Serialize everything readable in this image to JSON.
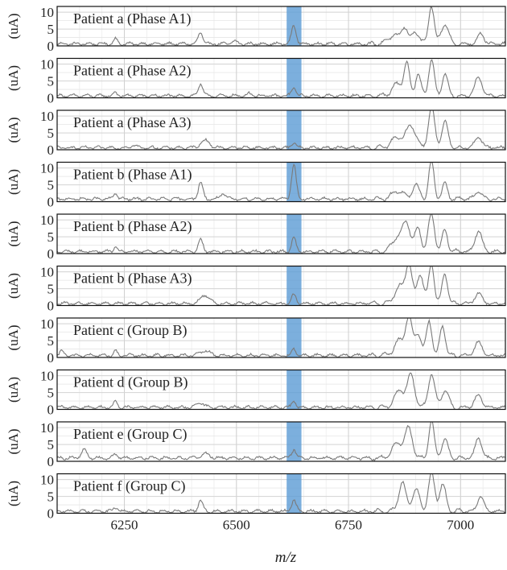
{
  "chart_data": {
    "type": "line",
    "title": "",
    "xlabel": "m/z",
    "ylabel": "(uA)",
    "xlim": [
      6100,
      7100
    ],
    "ylim": [
      0,
      11
    ],
    "x_ticks": [
      6250,
      6500,
      6750,
      7000
    ],
    "y_ticks": [
      0,
      5,
      10
    ],
    "grid": true,
    "highlight_band": {
      "x_range": [
        6612,
        6645
      ],
      "color": "#5b9bd5"
    },
    "line_color": "#7a7a7a",
    "series": [
      {
        "name": "Patient a (Phase A1)",
        "baseline": 0.6,
        "peaks": [
          [
            6230,
            1.6,
            4
          ],
          [
            6420,
            3.4,
            5
          ],
          [
            6495,
            0.8,
            6
          ],
          [
            6628,
            5.6,
            5
          ],
          [
            6850,
            2.5,
            12
          ],
          [
            6875,
            5.0,
            7
          ],
          [
            6900,
            3.6,
            8
          ],
          [
            6935,
            11.5,
            6
          ],
          [
            6965,
            6.0,
            8
          ],
          [
            7045,
            3.2,
            7
          ]
        ]
      },
      {
        "name": "Patient a (Phase A2)",
        "baseline": 0.6,
        "peaks": [
          [
            6230,
            1.0,
            4
          ],
          [
            6420,
            3.6,
            5
          ],
          [
            6530,
            0.7,
            6
          ],
          [
            6628,
            2.5,
            5
          ],
          [
            6860,
            3.5,
            12
          ],
          [
            6880,
            9.0,
            6
          ],
          [
            6905,
            6.5,
            6
          ],
          [
            6935,
            11.0,
            6
          ],
          [
            6965,
            6.8,
            6
          ],
          [
            7040,
            5.5,
            8
          ]
        ]
      },
      {
        "name": "Patient a (Phase A3)",
        "baseline": 0.6,
        "peaks": [
          [
            6270,
            0.8,
            6
          ],
          [
            6430,
            2.2,
            10
          ],
          [
            6628,
            1.6,
            5
          ],
          [
            6860,
            3.0,
            14
          ],
          [
            6890,
            6.5,
            10
          ],
          [
            6935,
            12.0,
            7
          ],
          [
            6965,
            7.5,
            7
          ],
          [
            7040,
            3.2,
            8
          ]
        ]
      },
      {
        "name": "Patient b (Phase A1)",
        "baseline": 0.8,
        "peaks": [
          [
            6230,
            2.0,
            4
          ],
          [
            6420,
            5.0,
            5
          ],
          [
            6470,
            1.6,
            6
          ],
          [
            6628,
            10.5,
            5
          ],
          [
            6860,
            2.5,
            12
          ],
          [
            6900,
            4.0,
            8
          ],
          [
            6935,
            11.0,
            6
          ],
          [
            6965,
            4.5,
            6
          ],
          [
            7040,
            2.2,
            8
          ]
        ]
      },
      {
        "name": "Patient b (Phase A2)",
        "baseline": 0.6,
        "peaks": [
          [
            6230,
            1.4,
            4
          ],
          [
            6420,
            3.5,
            5
          ],
          [
            6628,
            4.0,
            5
          ],
          [
            6860,
            4.5,
            12
          ],
          [
            6880,
            8.0,
            8
          ],
          [
            6905,
            7.0,
            7
          ],
          [
            6935,
            11.0,
            7
          ],
          [
            6965,
            6.5,
            6
          ],
          [
            7040,
            6.0,
            8
          ]
        ]
      },
      {
        "name": "Patient b (Phase A3)",
        "baseline": 0.6,
        "peaks": [
          [
            6430,
            2.5,
            10
          ],
          [
            6628,
            2.6,
            5
          ],
          [
            6865,
            5.0,
            12
          ],
          [
            6885,
            11.0,
            7
          ],
          [
            6910,
            9.0,
            7
          ],
          [
            6935,
            12.0,
            6
          ],
          [
            6965,
            9.0,
            6
          ],
          [
            7040,
            3.0,
            8
          ]
        ]
      },
      {
        "name": "Patient c (Group B)",
        "baseline": 0.6,
        "peaks": [
          [
            6110,
            1.4,
            4
          ],
          [
            6230,
            1.2,
            4
          ],
          [
            6430,
            1.4,
            10
          ],
          [
            6628,
            2.0,
            4
          ],
          [
            6865,
            4.5,
            12
          ],
          [
            6885,
            10.5,
            7
          ],
          [
            6905,
            6.5,
            7
          ],
          [
            6930,
            10.5,
            6
          ],
          [
            6960,
            9.0,
            6
          ],
          [
            7040,
            4.0,
            8
          ]
        ]
      },
      {
        "name": "Patient d (Group B)",
        "baseline": 0.6,
        "peaks": [
          [
            6230,
            1.8,
            4
          ],
          [
            6420,
            1.4,
            8
          ],
          [
            6628,
            2.2,
            4
          ],
          [
            6865,
            5.0,
            12
          ],
          [
            6890,
            9.0,
            8
          ],
          [
            6935,
            10.0,
            7
          ],
          [
            6965,
            5.0,
            8
          ],
          [
            7040,
            3.6,
            8
          ]
        ]
      },
      {
        "name": "Patient e (Group C)",
        "baseline": 1.0,
        "peaks": [
          [
            6160,
            2.4,
            6
          ],
          [
            6230,
            1.0,
            5
          ],
          [
            6430,
            1.2,
            10
          ],
          [
            6628,
            2.6,
            5
          ],
          [
            6860,
            4.5,
            12
          ],
          [
            6885,
            8.5,
            8
          ],
          [
            6935,
            11.0,
            6
          ],
          [
            6965,
            5.5,
            7
          ],
          [
            7040,
            6.0,
            7
          ]
        ]
      },
      {
        "name": "Patient f (Group C)",
        "baseline": 0.6,
        "peaks": [
          [
            6230,
            1.2,
            5
          ],
          [
            6420,
            3.2,
            5
          ],
          [
            6628,
            3.4,
            5
          ],
          [
            6870,
            8.5,
            8
          ],
          [
            6900,
            6.5,
            8
          ],
          [
            6935,
            11.0,
            7
          ],
          [
            6960,
            8.0,
            7
          ],
          [
            7045,
            4.5,
            7
          ]
        ]
      }
    ]
  }
}
